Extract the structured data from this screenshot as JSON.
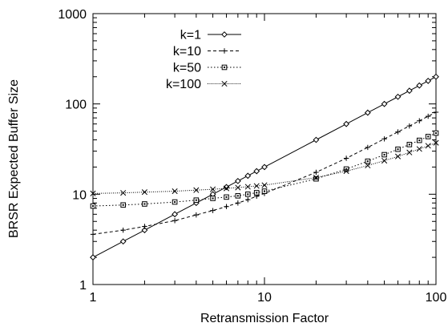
{
  "chart_data": {
    "type": "line",
    "title": "",
    "xlabel": "Retransmission Factor",
    "ylabel": "BRSR Expected Buffer Size",
    "xscale": "log",
    "yscale": "log",
    "xlim": [
      1,
      100
    ],
    "ylim": [
      1,
      1000
    ],
    "grid": false,
    "legend_position": "top-left",
    "x_ticks": [
      {
        "value": 1,
        "label": "1"
      },
      {
        "value": 10,
        "label": "10"
      },
      {
        "value": 100,
        "label": "100"
      }
    ],
    "y_ticks": [
      {
        "value": 1,
        "label": "1"
      },
      {
        "value": 10,
        "label": "10"
      },
      {
        "value": 100,
        "label": "100"
      },
      {
        "value": 1000,
        "label": "1000"
      }
    ],
    "x": [
      1,
      1.5,
      2,
      3,
      4,
      5,
      6,
      7,
      8,
      9,
      10,
      20,
      30,
      40,
      50,
      60,
      70,
      80,
      90,
      100
    ],
    "series": [
      {
        "name": "k=1",
        "marker": "diamond",
        "dash": "solid",
        "values": [
          2,
          3,
          4,
          6,
          8,
          10,
          12,
          14,
          16,
          18,
          20,
          40,
          60,
          80,
          100,
          120,
          140,
          160,
          180,
          200
        ]
      },
      {
        "name": "k=10",
        "marker": "plus",
        "dash": "dashed",
        "values": [
          3.6,
          4.0,
          4.4,
          5.1,
          5.9,
          6.6,
          7.3,
          8.0,
          8.7,
          9.5,
          10.2,
          17.5,
          25,
          33,
          41,
          49,
          57,
          65,
          73,
          81
        ]
      },
      {
        "name": "k=50",
        "marker": "square",
        "dash": "dotted",
        "values": [
          7.4,
          7.6,
          7.8,
          8.2,
          8.6,
          9.0,
          9.3,
          9.6,
          10.0,
          10.4,
          10.8,
          14.8,
          19,
          23.2,
          27.4,
          31.5,
          35.5,
          39.5,
          43.5,
          47.5
        ]
      },
      {
        "name": "k=100",
        "marker": "cross",
        "dash": "dense-dotted",
        "values": [
          10.2,
          10.35,
          10.55,
          10.8,
          11.1,
          11.35,
          11.6,
          11.85,
          12.1,
          12.35,
          12.6,
          15.3,
          18,
          20.8,
          23.5,
          26.2,
          29,
          31.7,
          34.4,
          37.1
        ]
      }
    ]
  }
}
